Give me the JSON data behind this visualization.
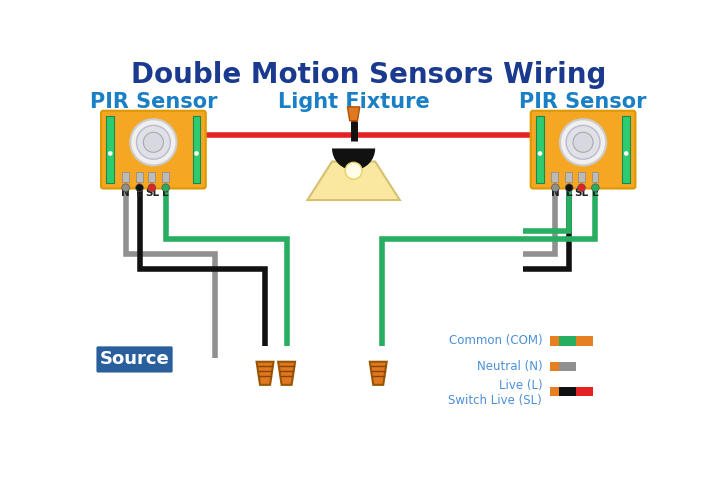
{
  "title": "Double Motion Sensors Wiring",
  "title_color": "#1a3a8f",
  "title_fontsize": 20,
  "bg_color": "#ffffff",
  "label_left": "PIR Sensor",
  "label_center": "Light Fixture",
  "label_right": "PIR Sensor",
  "label_color": "#1a7fc4",
  "label_fontsize": 15,
  "source_label": "Source",
  "source_bg": "#2a5f9e",
  "source_fg": "#ffffff",
  "sensor_box_color": "#f5a623",
  "sensor_pcb_color": "#2ecc71",
  "wire_green": "#27ae60",
  "wire_gray": "#909090",
  "wire_black": "#111111",
  "wire_red": "#e52222",
  "wire_orange": "#e67e22",
  "connector_color": "#e07820",
  "legend_text_color": "#4a90d9",
  "legend_fontsize": 8.5,
  "lw": 4.0
}
